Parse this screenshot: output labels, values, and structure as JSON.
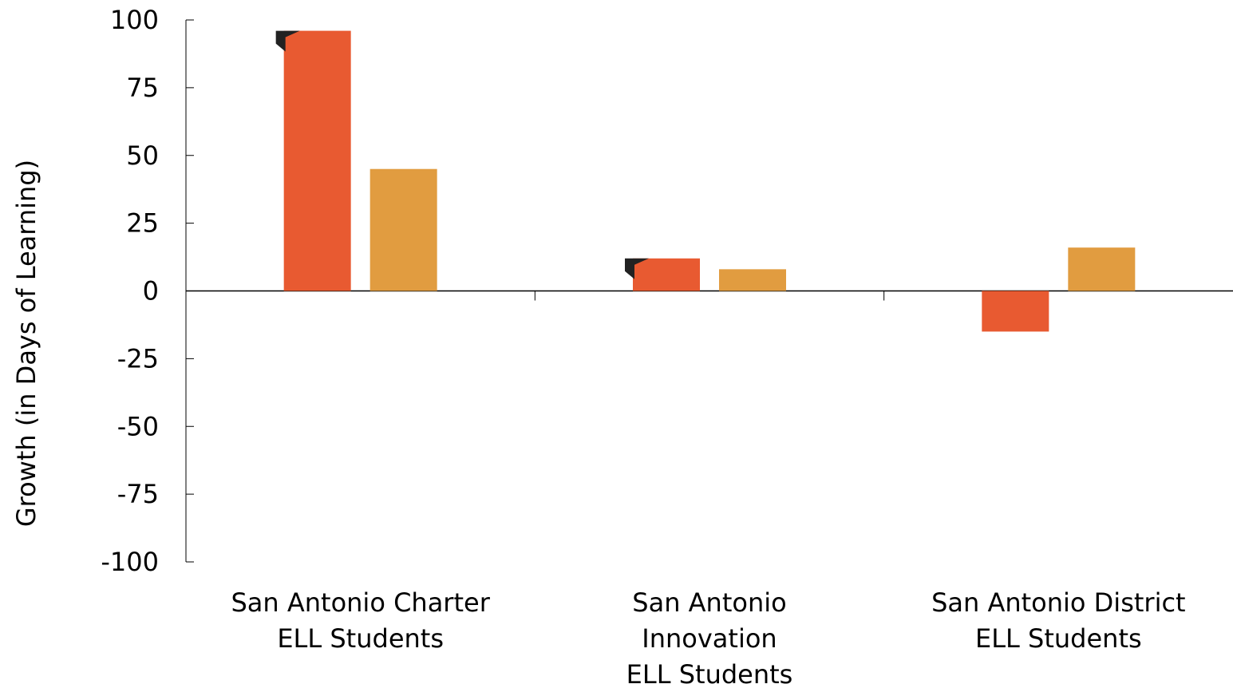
{
  "chart_data": {
    "type": "bar",
    "title": "",
    "xlabel": "",
    "ylabel": "Growth (in Days of Learning)",
    "ylim": [
      -100,
      100
    ],
    "yticks": [
      100,
      75,
      50,
      25,
      0,
      -25,
      -50,
      -75,
      -100
    ],
    "grid": false,
    "categories": [
      [
        "San Antonio Charter",
        "ELL Students"
      ],
      [
        "San Antonio",
        "Innovation",
        "ELL Students"
      ],
      [
        "San Antonio District",
        "ELL Students"
      ]
    ],
    "series": [
      {
        "values": [
          96,
          12,
          -15
        ],
        "color": "#E85A31",
        "marker_on": [
          true,
          true,
          false
        ]
      },
      {
        "values": [
          45,
          8,
          16
        ],
        "color": "#E19C40"
      }
    ]
  }
}
